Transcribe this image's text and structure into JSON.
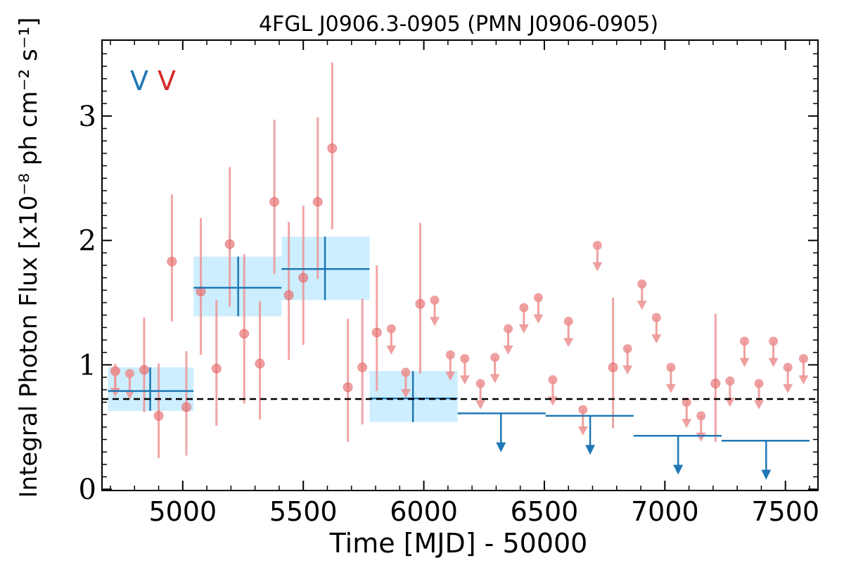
{
  "chart_data": {
    "type": "scatter",
    "title": "4FGL J0906.3-0905 (PMN J0906-0905)",
    "xlabel": "Time [MJD] - 50000",
    "ylabel": "Integral Photon Flux [x10⁻⁸ ph cm⁻² s⁻¹]",
    "xlim": [
      4665,
      7635
    ],
    "ylim": [
      -0.01,
      3.61
    ],
    "xticks": [
      5000,
      5500,
      6000,
      6500,
      7000,
      7500
    ],
    "yticks": [
      0,
      1,
      2,
      3
    ],
    "grid": false,
    "legend_position": "top-left",
    "legend": [
      {
        "text": "V",
        "color": "#1f77b4"
      },
      {
        "text": "V",
        "color": "#d62728"
      }
    ],
    "mean_flux": 0.725,
    "colors": {
      "short_bins": "#ec8f8f",
      "long_bins": "#1f77b4",
      "long_bins_band": "#cdeeff",
      "mean_line": "#000000"
    },
    "short_bins": {
      "detections": [
        {
          "x": 4720,
          "y": 0.95,
          "err": [
            0.82,
            1.01
          ]
        },
        {
          "x": 4840,
          "y": 0.96,
          "err": [
            0.62,
            1.38
          ]
        },
        {
          "x": 4900,
          "y": 0.59,
          "err": [
            0.25,
            1.01
          ]
        },
        {
          "x": 4955,
          "y": 1.83,
          "err": [
            1.35,
            2.37
          ]
        },
        {
          "x": 5015,
          "y": 0.66,
          "err": [
            0.27,
            1.11
          ]
        },
        {
          "x": 5075,
          "y": 1.59,
          "err": [
            1.08,
            2.18
          ]
        },
        {
          "x": 5140,
          "y": 0.97,
          "err": [
            0.51,
            1.52
          ]
        },
        {
          "x": 5195,
          "y": 1.97,
          "err": [
            1.47,
            2.59
          ]
        },
        {
          "x": 5255,
          "y": 1.25,
          "err": [
            0.69,
            1.89
          ]
        },
        {
          "x": 5320,
          "y": 1.01,
          "err": [
            0.56,
            1.51
          ]
        },
        {
          "x": 5380,
          "y": 2.31,
          "err": [
            1.73,
            2.97
          ]
        },
        {
          "x": 5440,
          "y": 1.56,
          "err": [
            1.04,
            2.15
          ]
        },
        {
          "x": 5500,
          "y": 1.7,
          "err": [
            1.16,
            2.28
          ]
        },
        {
          "x": 5560,
          "y": 2.31,
          "err": [
            1.69,
            2.99
          ]
        },
        {
          "x": 5620,
          "y": 2.74,
          "err": [
            2.09,
            3.43
          ]
        },
        {
          "x": 5685,
          "y": 0.82,
          "err": [
            0.38,
            1.37
          ]
        },
        {
          "x": 5745,
          "y": 0.98,
          "err": [
            0.52,
            1.53
          ]
        },
        {
          "x": 5805,
          "y": 1.26,
          "err": [
            0.79,
            1.8
          ]
        },
        {
          "x": 5985,
          "y": 1.49,
          "err": [
            0.93,
            2.14
          ]
        },
        {
          "x": 6785,
          "y": 0.98,
          "err": [
            0.49,
            1.54
          ]
        },
        {
          "x": 7210,
          "y": 0.85,
          "err": [
            0.38,
            1.41
          ]
        }
      ],
      "upper_limits": [
        {
          "x": 4720,
          "y": 0.95
        },
        {
          "x": 4780,
          "y": 0.93
        },
        {
          "x": 5865,
          "y": 1.29
        },
        {
          "x": 5925,
          "y": 0.94
        },
        {
          "x": 6045,
          "y": 1.52
        },
        {
          "x": 6110,
          "y": 1.08
        },
        {
          "x": 6170,
          "y": 1.05
        },
        {
          "x": 6235,
          "y": 0.85
        },
        {
          "x": 6295,
          "y": 1.06
        },
        {
          "x": 6350,
          "y": 1.29
        },
        {
          "x": 6415,
          "y": 1.46
        },
        {
          "x": 6475,
          "y": 1.54
        },
        {
          "x": 6535,
          "y": 0.88
        },
        {
          "x": 6600,
          "y": 1.35
        },
        {
          "x": 6660,
          "y": 0.64
        },
        {
          "x": 6720,
          "y": 1.96
        },
        {
          "x": 6845,
          "y": 1.13
        },
        {
          "x": 6905,
          "y": 1.65
        },
        {
          "x": 6965,
          "y": 1.38
        },
        {
          "x": 7025,
          "y": 0.98
        },
        {
          "x": 7090,
          "y": 0.7
        },
        {
          "x": 7150,
          "y": 0.59
        },
        {
          "x": 7270,
          "y": 0.87
        },
        {
          "x": 7330,
          "y": 1.19
        },
        {
          "x": 7390,
          "y": 0.85
        },
        {
          "x": 7450,
          "y": 1.19
        },
        {
          "x": 7510,
          "y": 0.98
        },
        {
          "x": 7575,
          "y": 1.05
        }
      ]
    },
    "long_bins": {
      "detections": [
        {
          "x": 4865,
          "xerr": [
            4690,
            5045
          ],
          "y": 0.79,
          "err": [
            0.63,
            0.98
          ]
        },
        {
          "x": 5230,
          "xerr": [
            5045,
            5410
          ],
          "y": 1.62,
          "err": [
            1.39,
            1.87
          ]
        },
        {
          "x": 5590,
          "xerr": [
            5410,
            5775
          ],
          "y": 1.77,
          "err": [
            1.52,
            2.03
          ]
        },
        {
          "x": 5955,
          "xerr": [
            5775,
            6140
          ],
          "y": 0.73,
          "err": [
            0.54,
            0.95
          ]
        }
      ],
      "upper_limits": [
        {
          "x": 6320,
          "xerr": [
            6140,
            6505
          ],
          "y": 0.61
        },
        {
          "x": 6690,
          "xerr": [
            6505,
            6870
          ],
          "y": 0.59
        },
        {
          "x": 7055,
          "xerr": [
            6870,
            7235
          ],
          "y": 0.43
        },
        {
          "x": 7420,
          "xerr": [
            7235,
            7600
          ],
          "y": 0.39
        }
      ]
    }
  }
}
